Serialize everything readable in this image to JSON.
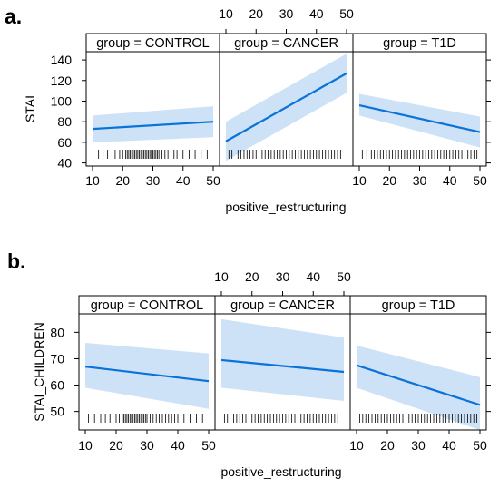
{
  "chart_data": [
    {
      "panel_label": "a.",
      "type": "line",
      "xlabel": "positive_restructuring",
      "ylabel": "STAI",
      "xlim": [
        10,
        50
      ],
      "ylim": [
        37,
        148
      ],
      "x_ticks": [
        10,
        20,
        30,
        40,
        50
      ],
      "y_ticks": [
        40,
        60,
        80,
        100,
        120,
        140
      ],
      "grid": false,
      "line_color": "#0a72d8",
      "band_color": "#cde2f7",
      "panels": [
        {
          "strip": "group = CONTROL",
          "x": [
            10,
            50
          ],
          "y": [
            73,
            80
          ],
          "ci_lower": [
            60,
            65
          ],
          "ci_upper": [
            86,
            95
          ],
          "rug": [
            12,
            13.5,
            15,
            17.5,
            19,
            20,
            21,
            21.5,
            22,
            22.5,
            23,
            23.5,
            24,
            24.5,
            25,
            25.5,
            26,
            26.5,
            27,
            27.5,
            28,
            28.5,
            29,
            29.5,
            30,
            30.5,
            31,
            31.5,
            32,
            33,
            34,
            35,
            36,
            37,
            38,
            40,
            42,
            44,
            46,
            48
          ]
        },
        {
          "strip": "group = CANCER",
          "x": [
            10,
            50
          ],
          "y": [
            61,
            127
          ],
          "ci_lower": [
            42,
            108
          ],
          "ci_upper": [
            80,
            146
          ],
          "rug": [
            11,
            12,
            14,
            15,
            16,
            17,
            18,
            19,
            20,
            21,
            22,
            23,
            24,
            25,
            26,
            27,
            28,
            29,
            30,
            31,
            32,
            33,
            34,
            35,
            36,
            37,
            38,
            39,
            40,
            41,
            42,
            43,
            44,
            45,
            46,
            47,
            48
          ]
        },
        {
          "strip": "group = T1D",
          "x": [
            10,
            50
          ],
          "y": [
            96,
            70
          ],
          "ci_lower": [
            86,
            55
          ],
          "ci_upper": [
            107,
            85
          ],
          "rug": [
            11,
            12.5,
            14,
            15,
            16,
            17,
            18,
            19,
            20,
            21,
            22,
            23,
            24,
            25,
            26,
            27,
            28,
            29,
            30,
            31,
            32,
            33,
            34,
            35,
            36,
            37,
            38,
            39,
            40,
            41,
            42,
            43,
            44,
            45,
            46,
            47,
            48,
            49
          ]
        }
      ]
    },
    {
      "panel_label": "b.",
      "type": "line",
      "xlabel": "positive_restructuring",
      "ylabel": "STAI_CHILDREN",
      "xlim": [
        10,
        50
      ],
      "ylim": [
        43,
        87
      ],
      "x_ticks": [
        10,
        20,
        30,
        40,
        50
      ],
      "y_ticks": [
        50,
        60,
        70,
        80
      ],
      "grid": false,
      "line_color": "#0a72d8",
      "band_color": "#cde2f7",
      "panels": [
        {
          "strip": "group = CONTROL",
          "x": [
            10,
            50
          ],
          "y": [
            67,
            61.5
          ],
          "ci_lower": [
            59,
            51
          ],
          "ci_upper": [
            76,
            72
          ],
          "rug": [
            11,
            13,
            15,
            16.5,
            18,
            19,
            20,
            21,
            22,
            22.5,
            23,
            23.5,
            24,
            24.5,
            25,
            25.5,
            26,
            26.5,
            27,
            27.5,
            28,
            28.5,
            29,
            29.5,
            30,
            31,
            32,
            33,
            34,
            35,
            36,
            37,
            38,
            39,
            40,
            42,
            44,
            46,
            48
          ]
        },
        {
          "strip": "group = CANCER",
          "x": [
            10,
            50
          ],
          "y": [
            69.5,
            65
          ],
          "ci_lower": [
            59,
            54
          ],
          "ci_upper": [
            85,
            78
          ],
          "rug": [
            11,
            12,
            14,
            15,
            16,
            17,
            18,
            19,
            20,
            21,
            22,
            23,
            24,
            25,
            26,
            27,
            28,
            29,
            30,
            31,
            32,
            33,
            34,
            35,
            36,
            37,
            38,
            39,
            40,
            41,
            42,
            43,
            44,
            45,
            46,
            47,
            48
          ]
        },
        {
          "strip": "group = T1D",
          "x": [
            10,
            50
          ],
          "y": [
            67.5,
            52.5
          ],
          "ci_lower": [
            59,
            43
          ],
          "ci_upper": [
            75,
            63
          ],
          "rug": [
            11,
            12,
            13,
            14,
            15,
            16,
            17,
            18,
            19,
            20,
            21,
            22,
            23,
            24,
            25,
            26,
            27,
            28,
            29,
            30,
            31,
            32,
            33,
            34,
            35,
            36,
            37,
            38,
            39,
            40,
            41,
            42,
            43,
            44,
            45,
            46,
            47,
            48,
            49
          ]
        }
      ]
    }
  ]
}
